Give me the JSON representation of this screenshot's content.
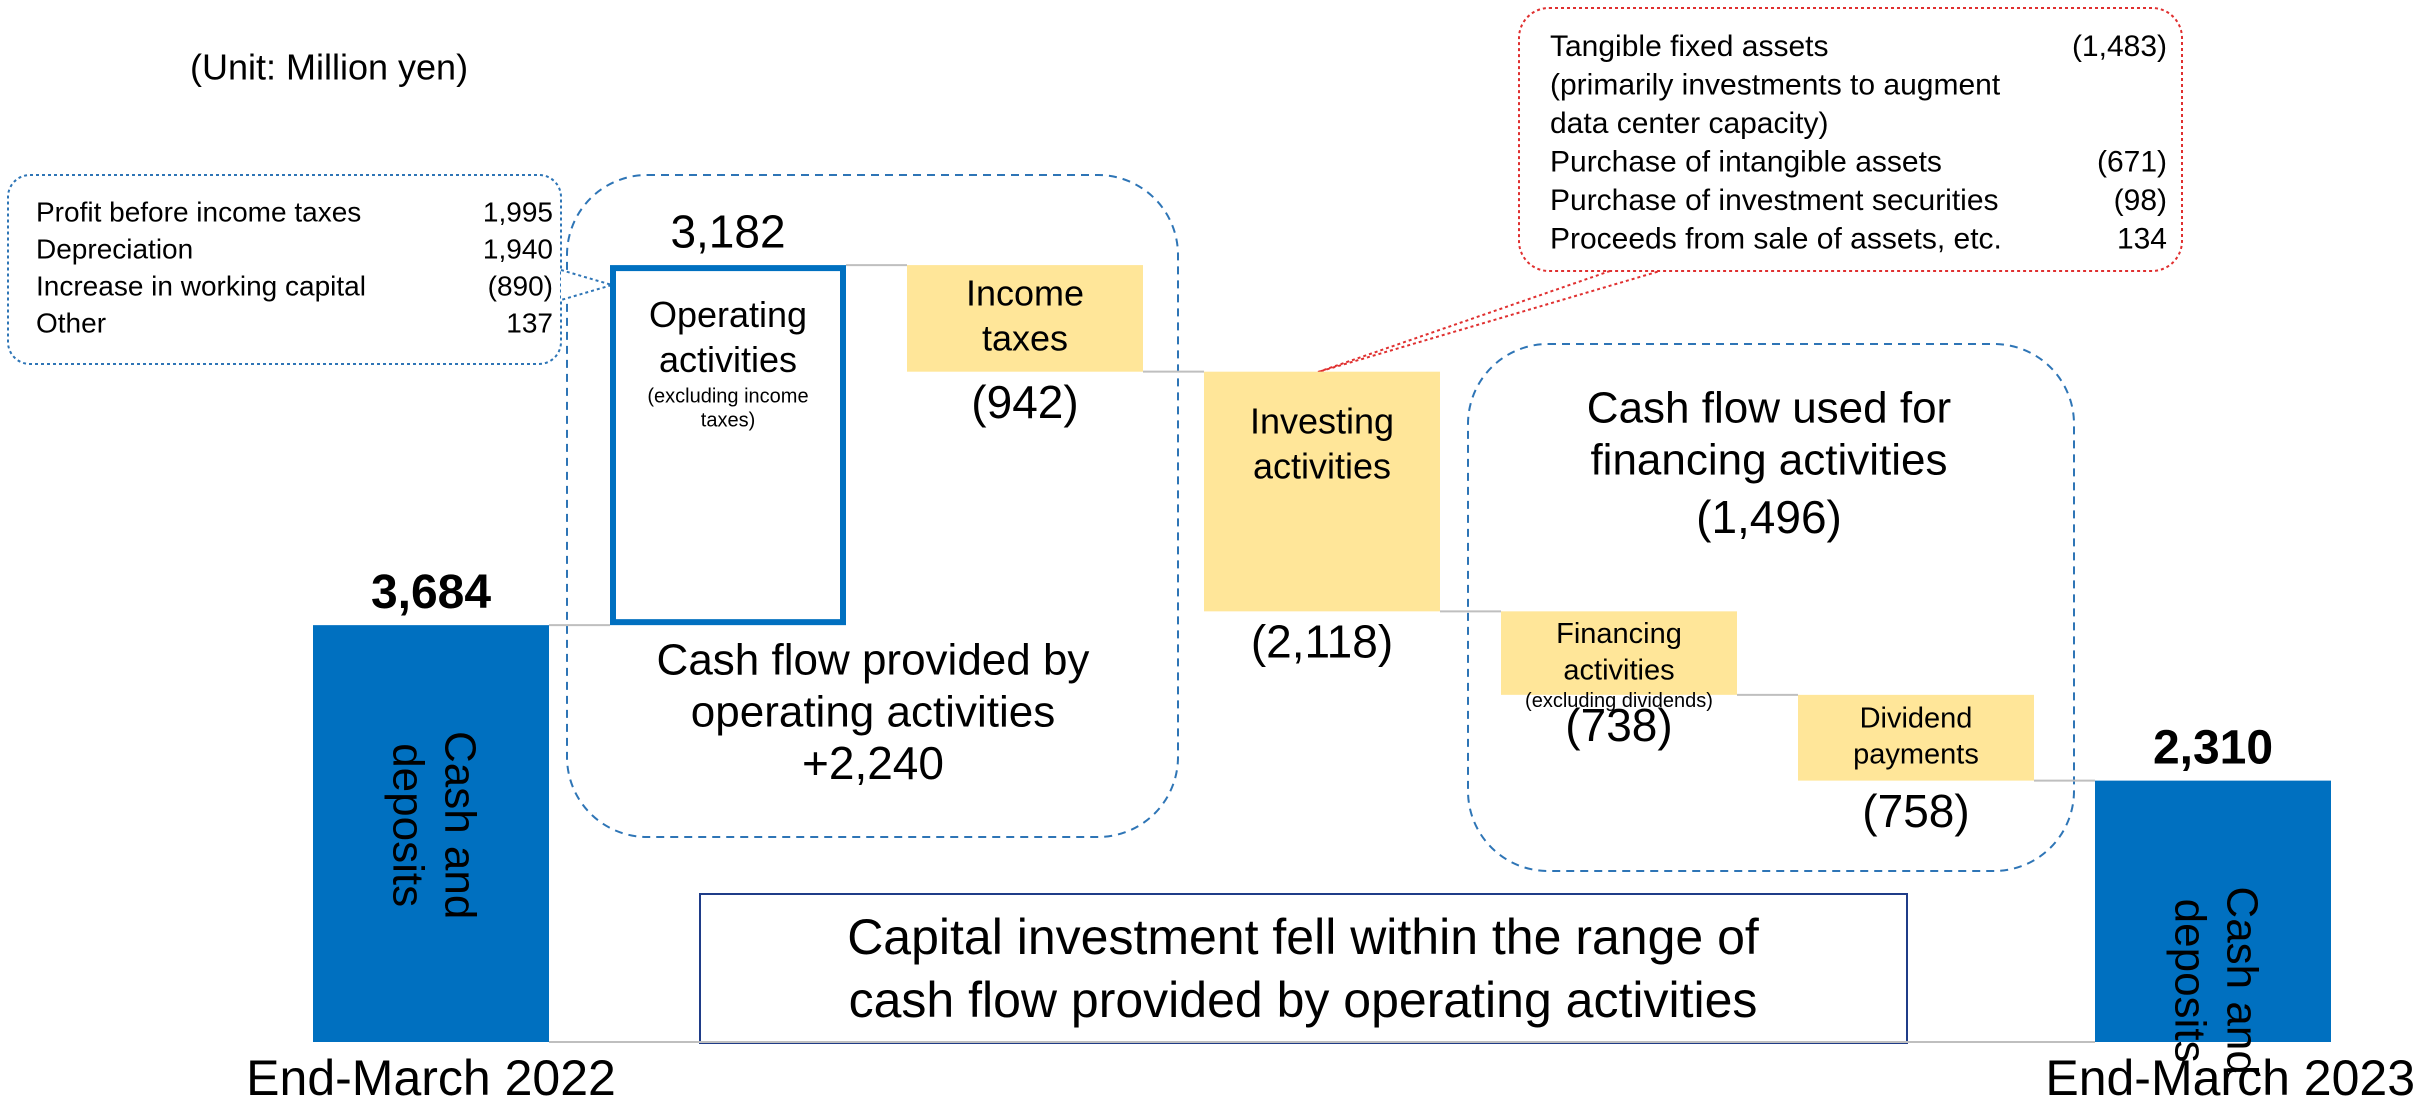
{
  "chart_data": {
    "type": "waterfall",
    "unit_note": "(Unit: Million yen)",
    "categories": [
      "End-March 2022",
      null,
      null,
      null,
      null,
      null,
      "End-March 2023"
    ],
    "measure": [
      "total",
      "relative",
      "relative",
      "relative",
      "relative",
      "relative",
      "total"
    ],
    "values": [
      3684,
      3182,
      -942,
      -2118,
      -738,
      -758,
      2310
    ],
    "value_labels": [
      "3,684",
      "3,182",
      "(942)",
      "(2,118)",
      "(738)",
      "(758)",
      "2,310"
    ],
    "bar_labels": [
      [
        "Cash and",
        "deposits"
      ],
      [
        "Operating",
        "activities"
      ],
      [
        "Income",
        "taxes"
      ],
      [
        "Investing",
        "activities"
      ],
      [
        "Financing",
        "activities"
      ],
      [
        "Dividend",
        "payments"
      ],
      [
        "Cash and",
        "deposits"
      ]
    ],
    "bar_notes": {
      "1": [
        "(excluding income",
        "taxes)"
      ],
      "4": [
        "(excluding dividends)"
      ]
    },
    "colors": {
      "total": "#0070c0",
      "increase": "#0070c0",
      "decrease": "#ffe699"
    },
    "ylim": [
      0,
      9200
    ],
    "groups": [
      {
        "lines": [
          "Cash flow provided by",
          "operating activities"
        ],
        "total": "+2,240"
      },
      {
        "lines": [
          "Cash flow used for",
          "financing activities"
        ],
        "total": "(1,496)"
      }
    ],
    "callouts": [
      {
        "rows": [
          {
            "label": [
              "Profit before income taxes"
            ],
            "value": "1,995"
          },
          {
            "label": [
              "Depreciation"
            ],
            "value": "1,940"
          },
          {
            "label": [
              "Increase in working capital"
            ],
            "value": "(890)"
          },
          {
            "label": [
              "Other"
            ],
            "value": "137"
          }
        ]
      },
      {
        "rows": [
          {
            "label": [
              "Tangible fixed assets",
              "(primarily investments to augment",
              "data center capacity)"
            ],
            "value": "(1,483)"
          },
          {
            "label": [
              "Purchase of intangible assets"
            ],
            "value": "(671)"
          },
          {
            "label": [
              "Purchase of investment securities"
            ],
            "value": "(98)"
          },
          {
            "label": [
              "Proceeds from sale of assets, etc."
            ],
            "value": "134"
          }
        ]
      }
    ],
    "message": [
      "Capital investment fell within the range of",
      "cash flow provided by operating activities"
    ]
  }
}
